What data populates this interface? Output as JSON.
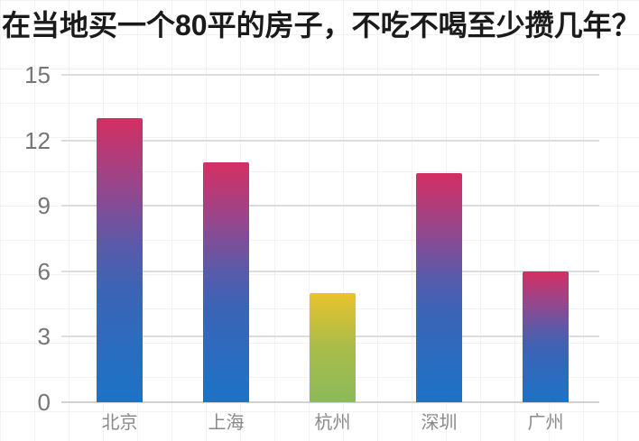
{
  "title": "在当地买一个80平的房子，不吃不喝至少攒几年？",
  "chart_data": {
    "type": "bar",
    "title": "在当地买一个80平的房子，不吃不喝至少攒几年？",
    "categories": [
      "北京",
      "上海",
      "杭州",
      "深圳",
      "广州"
    ],
    "values": [
      13,
      11,
      5,
      10.5,
      6
    ],
    "xlabel": "",
    "ylabel": "",
    "ylim": [
      0,
      15
    ],
    "yticks": [
      0,
      3,
      6,
      9,
      12,
      15
    ],
    "grid": true,
    "legend": false,
    "bar_gradient_names": [
      "pink-blue",
      "pink-blue",
      "yellow-green",
      "pink-blue",
      "pink-blue"
    ],
    "gradients": {
      "pink-blue": [
        "#d42f63 0%",
        "#9c4489 22%",
        "#5a5aaa 45%",
        "#3c64b5 60%",
        "#1c73c7 100%"
      ],
      "yellow-green": [
        "#e9c32e 0%",
        "#a9bc49 50%",
        "#8cba5c 100%"
      ]
    },
    "colors": {
      "title_text": "#1a1a1a",
      "gridline": "#dcdcdc",
      "y_tick_label": "#757575",
      "x_tick_label": "#8a8a8a",
      "background": "#ffffff"
    }
  }
}
